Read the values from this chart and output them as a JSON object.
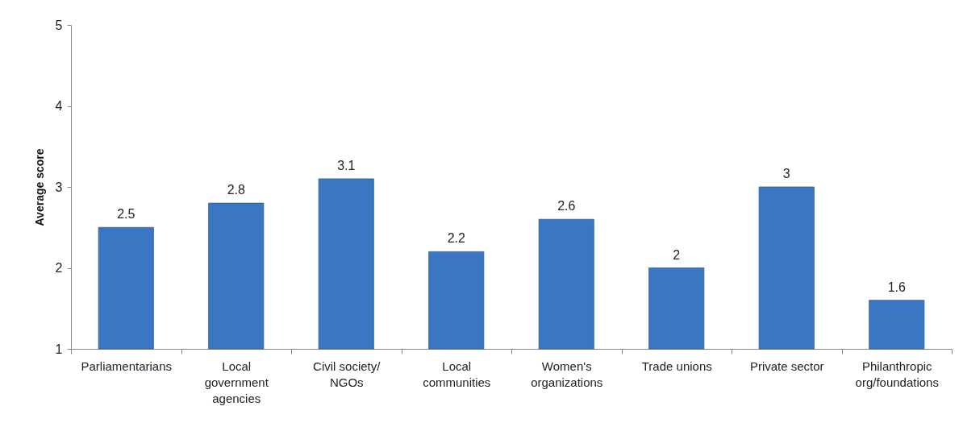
{
  "chart_data": {
    "type": "bar",
    "ylabel": "Average score",
    "categories": [
      "Parliamentarians",
      "Local government agencies",
      "Civil society/ NGOs",
      "Local communities",
      "Women's organizations",
      "Trade unions",
      "Private sector",
      "Philanthropic org/foundations"
    ],
    "values": [
      2.5,
      2.8,
      3.1,
      2.2,
      2.6,
      2,
      3,
      1.6
    ],
    "color": "#3b76c2",
    "ylim": [
      1,
      5
    ],
    "yticks": [
      1,
      2,
      3,
      4,
      5
    ],
    "grid": false,
    "data_labels": true
  }
}
